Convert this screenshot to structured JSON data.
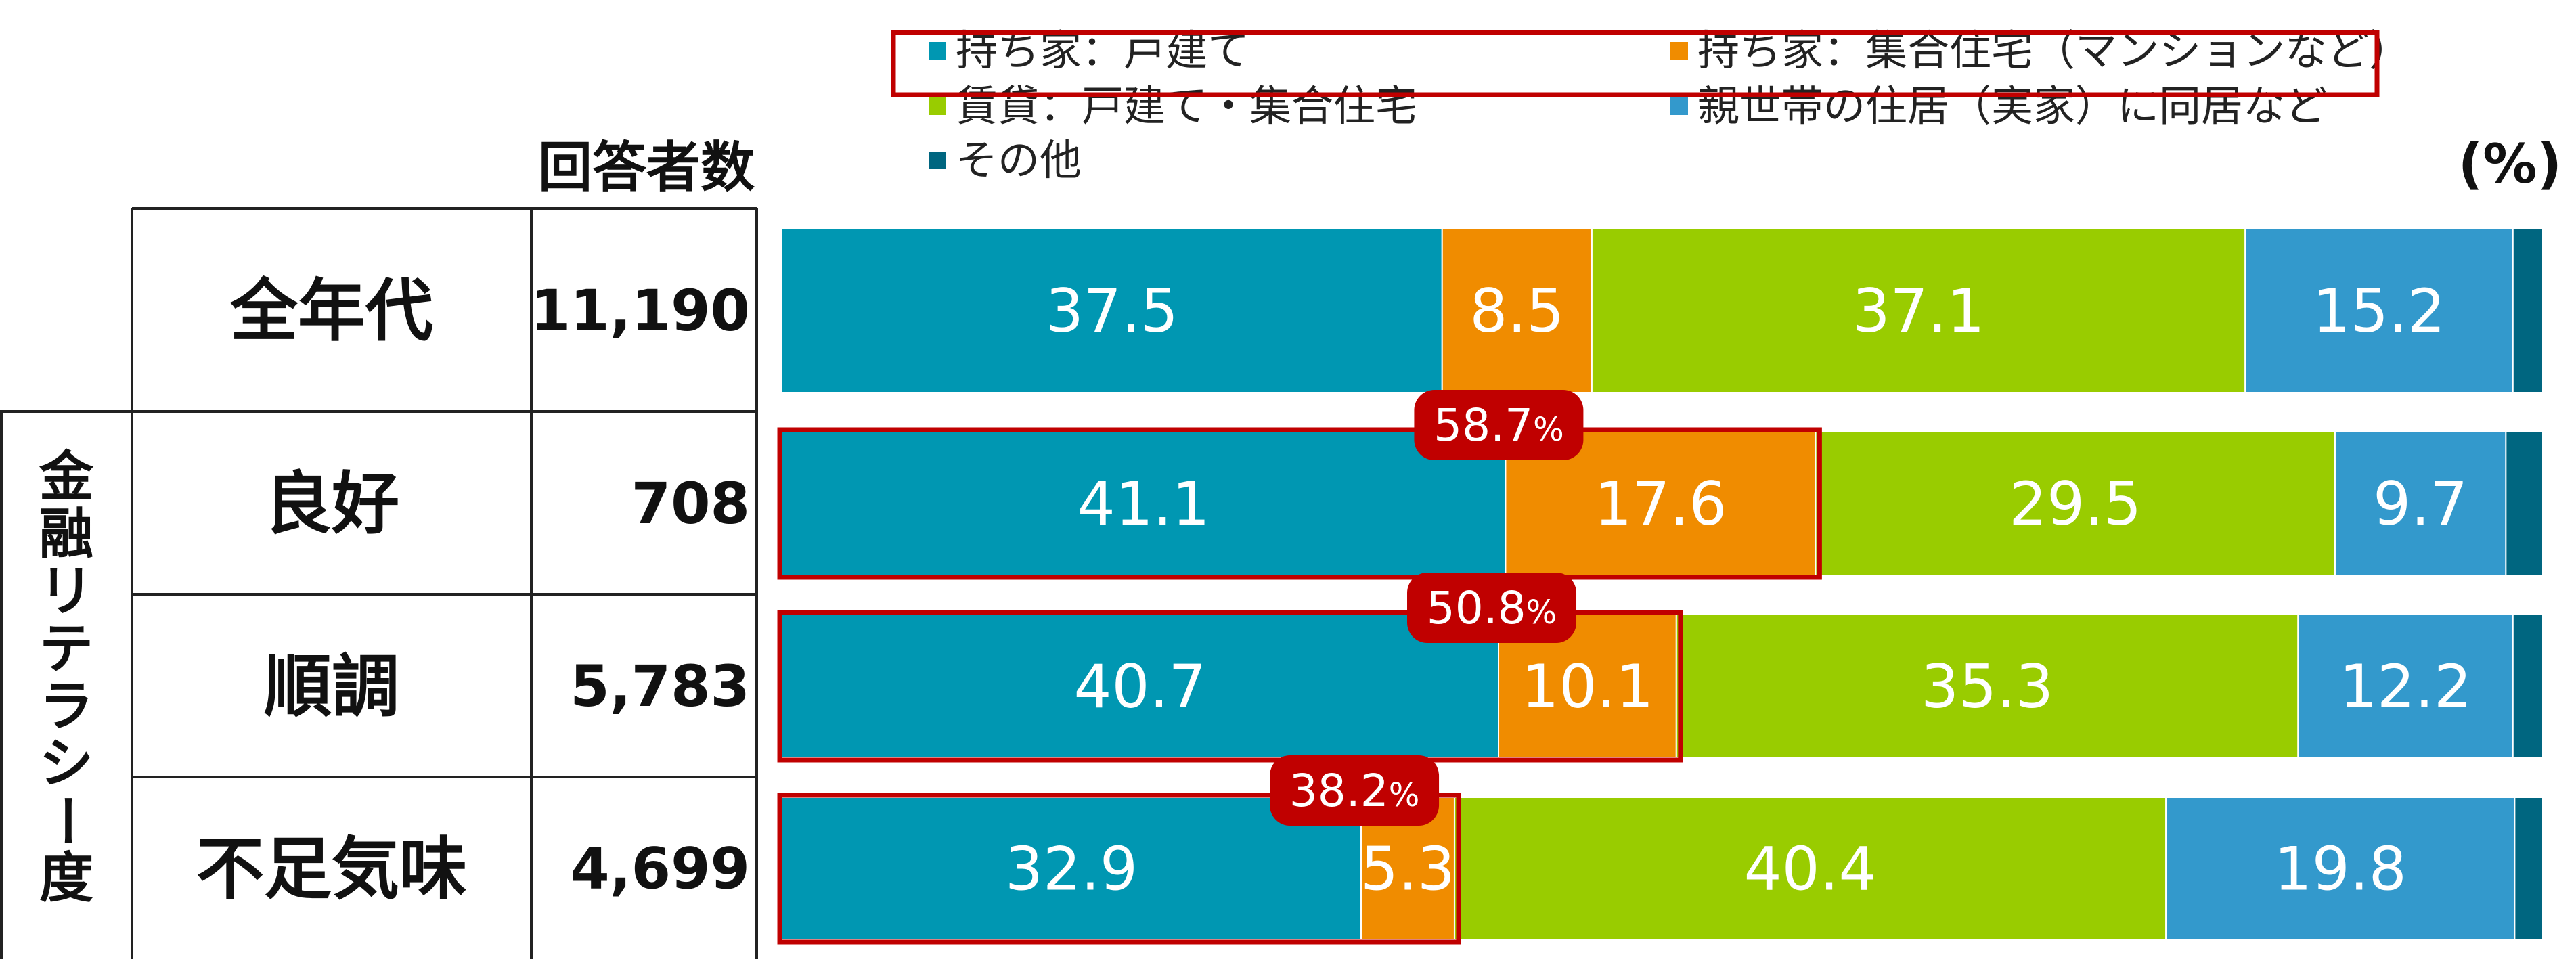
{
  "chart_data": {
    "type": "bar",
    "orientation": "horizontal",
    "stacked": true,
    "unit_label": "(%)",
    "count_header": "回答者数",
    "group_label": "金融リテラシー度",
    "categories": [
      "全年代",
      "良好",
      "順調",
      "不足気味"
    ],
    "counts": [
      "11,190",
      "708",
      "5,783",
      "4,699"
    ],
    "series": [
      {
        "name": "持ち家：戸建て",
        "color": "#0097b2",
        "values": [
          37.5,
          41.1,
          40.7,
          32.9
        ]
      },
      {
        "name": "持ち家：集合住宅（マンションなど）",
        "color": "#f08c00",
        "values": [
          8.5,
          17.6,
          10.1,
          5.3
        ]
      },
      {
        "name": "賃貸：戸建て・集合住宅",
        "color": "#99cc00",
        "values": [
          37.1,
          29.5,
          35.3,
          40.4
        ]
      },
      {
        "name": "親世帯の住居（実家）に同居など",
        "color": "#3399cc",
        "values": [
          15.2,
          9.7,
          12.2,
          19.8
        ]
      },
      {
        "name": "その他",
        "color": "#006680",
        "values": [
          1.7,
          2.1,
          1.7,
          1.6
        ]
      }
    ],
    "xlim": [
      0,
      100
    ],
    "legend_position": "top",
    "highlight_totals": [
      null,
      "58.7",
      "50.8",
      "38.2"
    ],
    "highlight_suffix": "%",
    "highlight_color": "#c00000"
  }
}
